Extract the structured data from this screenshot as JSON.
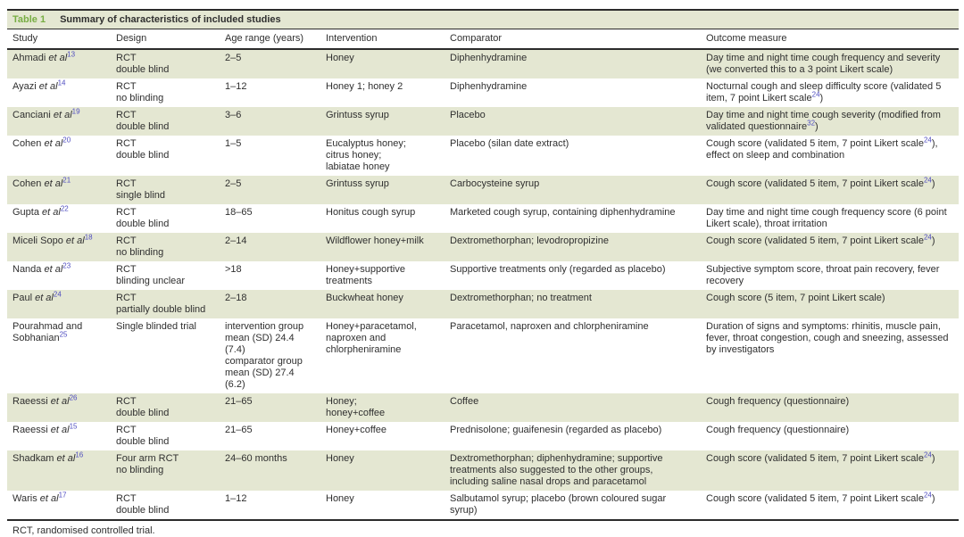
{
  "colors": {
    "accent_green": "#77ad43",
    "row_shade": "#e4e7d2",
    "citation_link_blue": "#4f4dc0",
    "rule_dark": "#2b2b2b",
    "text": "#2f2f2f"
  },
  "table": {
    "label": "Table 1",
    "title": "Summary of characteristics of included studies",
    "columns": [
      "Study",
      "Design",
      "Age range (years)",
      "Intervention",
      "Comparator",
      "Outcome measure"
    ],
    "rows": [
      {
        "study": "Ahmadi *et al*^{13}",
        "design": "RCT\ndouble blind",
        "age": "2–5",
        "intervention": "Honey",
        "comparator": "Diphenhydramine",
        "outcome": "Day time and night time cough frequency and severity (we converted this to a 3 point Likert scale)"
      },
      {
        "study": "Ayazi *et al*^{14}",
        "design": "RCT\nno blinding",
        "age": "1–12",
        "intervention": "Honey 1; honey 2",
        "comparator": "Diphenhydramine",
        "outcome": "Nocturnal cough and sleep difficulty score (validated 5 item, 7 point Likert scale^{24})"
      },
      {
        "study": "Canciani *et al*^{19}",
        "design": "RCT\ndouble blind",
        "age": "3–6",
        "intervention": "Grintuss syrup",
        "comparator": "Placebo",
        "outcome": "Day time and night time cough severity (modified from validated questionnaire^{32})"
      },
      {
        "study": "Cohen *et al*^{20}",
        "design": "RCT\ndouble blind",
        "age": "1–5",
        "intervention": "Eucalyptus honey;\ncitrus honey;\nlabiatae honey",
        "comparator": "Placebo (silan date extract)",
        "outcome": "Cough score (validated 5 item, 7 point Likert scale^{24}), effect on sleep and combination"
      },
      {
        "study": "Cohen *et al*^{21}",
        "design": "RCT\nsingle blind",
        "age": "2–5",
        "intervention": "Grintuss syrup",
        "comparator": "Carbocysteine syrup",
        "outcome": "Cough score (validated 5 item, 7 point Likert scale^{24})"
      },
      {
        "study": "Gupta *et al*^{22}",
        "design": "RCT\ndouble blind",
        "age": "18–65",
        "intervention": "Honitus cough syrup",
        "comparator": "Marketed cough syrup, containing diphenhydramine",
        "outcome": "Day time and night time cough frequency score (6 point Likert scale), throat irritation"
      },
      {
        "study": "Miceli Sopo *et al*^{18}",
        "design": "RCT\nno blinding",
        "age": "2–14",
        "intervention": "Wildflower honey+milk",
        "comparator": "Dextromethorphan; levodropropizine",
        "outcome": "Cough score (validated 5 item, 7 point Likert scale^{24})"
      },
      {
        "study": "Nanda *et al*^{23}",
        "design": "RCT\nblinding unclear",
        "age": ">18",
        "intervention": "Honey+supportive\ntreatments",
        "comparator": "Supportive treatments only (regarded as placebo)",
        "outcome": "Subjective symptom score, throat pain recovery, fever recovery"
      },
      {
        "study": "Paul *et al*^{24}",
        "design": "RCT\npartially double blind",
        "age": "2–18",
        "intervention": "Buckwheat honey",
        "comparator": "Dextromethorphan; no treatment",
        "outcome": "Cough score (5 item, 7 point Likert scale)"
      },
      {
        "study": "Pourahmad and Sobhanian^{25}",
        "design": "Single blinded trial",
        "age": "intervention group\nmean (SD) 24.4 (7.4)\ncomparator group\nmean (SD) 27.4 (6.2)",
        "intervention": "Honey+paracetamol,\nnaproxen and\nchlorpheniramine",
        "comparator": "Paracetamol, naproxen and chlorpheniramine",
        "outcome": "Duration of signs and symptoms: rhinitis, muscle pain, fever, throat congestion, cough and sneezing, assessed by investigators"
      },
      {
        "study": "Raeessi *et al*^{26}",
        "design": "RCT\ndouble blind",
        "age": "21–65",
        "intervention": "Honey;\nhoney+coffee",
        "comparator": "Coffee",
        "outcome": "Cough frequency (questionnaire)"
      },
      {
        "study": "Raeessi *et al*^{15}",
        "design": "RCT\ndouble blind",
        "age": "21–65",
        "intervention": "Honey+coffee",
        "comparator": "Prednisolone; guaifenesin (regarded as placebo)",
        "outcome": "Cough frequency (questionnaire)"
      },
      {
        "study": "Shadkam *et al*^{16}",
        "design": "Four arm RCT\nno blinding",
        "age": "24–60 months",
        "intervention": "Honey",
        "comparator": "Dextromethorphan; diphenhydramine; supportive treatments also suggested to the other groups, including saline nasal drops and paracetamol",
        "outcome": "Cough score (validated 5 item, 7 point Likert scale^{24})"
      },
      {
        "study": "Waris *et al*^{17}",
        "design": "RCT\ndouble blind",
        "age": "1–12",
        "intervention": "Honey",
        "comparator": "Salbutamol syrup; placebo (brown coloured sugar syrup)",
        "outcome": "Cough score (validated 5 item, 7 point Likert scale^{24})"
      }
    ],
    "footnote": "RCT, randomised controlled trial."
  }
}
